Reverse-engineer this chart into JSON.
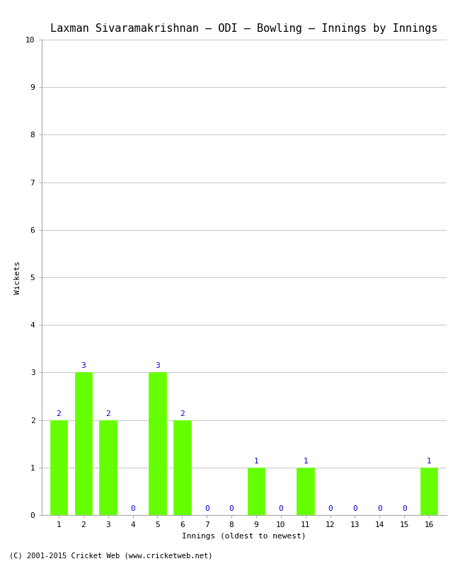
{
  "title": "Laxman Sivaramakrishnan – ODI – Bowling – Innings by Innings",
  "xlabel": "Innings (oldest to newest)",
  "ylabel": "Wickets",
  "innings": [
    1,
    2,
    3,
    4,
    5,
    6,
    7,
    8,
    9,
    10,
    11,
    12,
    13,
    14,
    15,
    16
  ],
  "wickets": [
    2,
    3,
    2,
    0,
    3,
    2,
    0,
    0,
    1,
    0,
    1,
    0,
    0,
    0,
    0,
    1
  ],
  "bar_color": "#66ff00",
  "label_color": "#0000cc",
  "ylim": [
    0,
    10
  ],
  "yticks": [
    0,
    1,
    2,
    3,
    4,
    5,
    6,
    7,
    8,
    9,
    10
  ],
  "grid_color": "#cccccc",
  "bg_color": "#ffffff",
  "plot_bg_color": "#f0f0f0",
  "title_fontsize": 11,
  "axis_label_fontsize": 8,
  "tick_label_fontsize": 8,
  "bar_label_fontsize": 8,
  "footer": "(C) 2001-2015 Cricket Web (www.cricketweb.net)"
}
